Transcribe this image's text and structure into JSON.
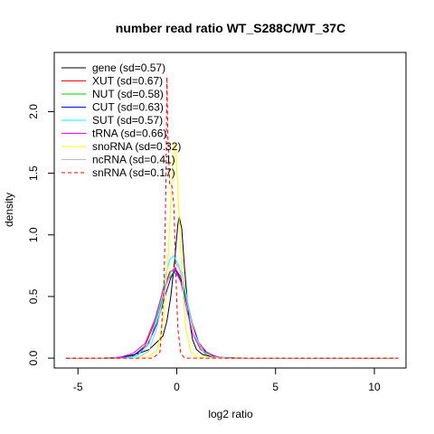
{
  "chart_data": {
    "type": "line",
    "title": "number read ratio WT_S288C/WT_37C",
    "xlabel": "log2 ratio",
    "ylabel": "density",
    "xlim": [
      -6.2,
      11.6
    ],
    "ylim": [
      -0.08,
      2.48
    ],
    "xticks": [
      -5,
      0,
      5,
      10
    ],
    "yticks": [
      0.0,
      0.5,
      1.0,
      1.5,
      2.0
    ],
    "xtick_labels": [
      "-5",
      "0",
      "5",
      "10"
    ],
    "ytick_labels": [
      "0.0",
      "0.5",
      "1.0",
      "1.5",
      "2.0"
    ],
    "legend_position": "top-left",
    "grid": false,
    "series": [
      {
        "name": "gene (sd=0.57)",
        "color": "#000000",
        "dash": false,
        "points": [
          [
            -5.6,
            0
          ],
          [
            -4.0,
            0
          ],
          [
            -3.0,
            0.005
          ],
          [
            -2.4,
            0.02
          ],
          [
            -1.9,
            0.04
          ],
          [
            -1.4,
            0.07
          ],
          [
            -1.0,
            0.13
          ],
          [
            -0.7,
            0.18
          ],
          [
            -0.5,
            0.3
          ],
          [
            -0.3,
            0.5
          ],
          [
            -0.1,
            0.8
          ],
          [
            0.05,
            1.08
          ],
          [
            0.12,
            1.15
          ],
          [
            0.25,
            1.05
          ],
          [
            0.4,
            0.72
          ],
          [
            0.6,
            0.35
          ],
          [
            0.8,
            0.15
          ],
          [
            1.0,
            0.07
          ],
          [
            1.3,
            0.03
          ],
          [
            1.8,
            0.01
          ],
          [
            2.5,
            0.003
          ],
          [
            4.0,
            0
          ],
          [
            11.2,
            0
          ]
        ]
      },
      {
        "name": "XUT (sd=0.67)",
        "color": "#ff0000",
        "dash": false,
        "points": [
          [
            -5.6,
            0
          ],
          [
            -3.0,
            0
          ],
          [
            -2.2,
            0.02
          ],
          [
            -1.6,
            0.1
          ],
          [
            -1.1,
            0.3
          ],
          [
            -0.7,
            0.55
          ],
          [
            -0.35,
            0.7
          ],
          [
            -0.1,
            0.73
          ],
          [
            0.2,
            0.66
          ],
          [
            0.5,
            0.48
          ],
          [
            0.8,
            0.28
          ],
          [
            1.1,
            0.13
          ],
          [
            1.5,
            0.05
          ],
          [
            2.0,
            0.01
          ],
          [
            3.0,
            0
          ],
          [
            11.2,
            0
          ]
        ]
      },
      {
        "name": "NUT (sd=0.58)",
        "color": "#00cc00",
        "dash": false,
        "points": [
          [
            -5.6,
            0
          ],
          [
            -2.8,
            0
          ],
          [
            -2.0,
            0.02
          ],
          [
            -1.4,
            0.12
          ],
          [
            -0.9,
            0.38
          ],
          [
            -0.5,
            0.62
          ],
          [
            -0.15,
            0.7
          ],
          [
            0.15,
            0.65
          ],
          [
            0.5,
            0.45
          ],
          [
            0.8,
            0.25
          ],
          [
            1.1,
            0.12
          ],
          [
            1.4,
            0.04
          ],
          [
            1.9,
            0.01
          ],
          [
            2.8,
            0
          ],
          [
            11.2,
            0
          ]
        ]
      },
      {
        "name": "CUT (sd=0.63)",
        "color": "#0000ff",
        "dash": false,
        "points": [
          [
            -5.6,
            0
          ],
          [
            -3.0,
            0
          ],
          [
            -2.2,
            0.02
          ],
          [
            -1.5,
            0.1
          ],
          [
            -1.0,
            0.28
          ],
          [
            -0.6,
            0.5
          ],
          [
            -0.3,
            0.65
          ],
          [
            -0.05,
            0.72
          ],
          [
            0.25,
            0.62
          ],
          [
            0.55,
            0.42
          ],
          [
            0.85,
            0.24
          ],
          [
            1.2,
            0.09
          ],
          [
            1.6,
            0.03
          ],
          [
            2.2,
            0.005
          ],
          [
            3.0,
            0
          ],
          [
            11.2,
            0
          ]
        ]
      },
      {
        "name": "SUT (sd=0.57)",
        "color": "#00ffff",
        "dash": false,
        "points": [
          [
            -5.6,
            0
          ],
          [
            -2.8,
            0
          ],
          [
            -2.0,
            0.02
          ],
          [
            -1.4,
            0.12
          ],
          [
            -0.9,
            0.4
          ],
          [
            -0.6,
            0.65
          ],
          [
            -0.35,
            0.8
          ],
          [
            -0.15,
            0.83
          ],
          [
            0.1,
            0.75
          ],
          [
            0.4,
            0.55
          ],
          [
            0.7,
            0.32
          ],
          [
            1.0,
            0.15
          ],
          [
            1.4,
            0.05
          ],
          [
            1.9,
            0.01
          ],
          [
            2.8,
            0
          ],
          [
            11.2,
            0
          ]
        ]
      },
      {
        "name": "tRNA (sd=0.66)",
        "color": "#ff00ff",
        "dash": false,
        "points": [
          [
            -5.6,
            0
          ],
          [
            -3.4,
            0
          ],
          [
            -2.8,
            0.01
          ],
          [
            -2.2,
            0.04
          ],
          [
            -1.6,
            0.12
          ],
          [
            -1.1,
            0.32
          ],
          [
            -0.7,
            0.55
          ],
          [
            -0.3,
            0.7
          ],
          [
            -0.1,
            0.72
          ],
          [
            0.2,
            0.62
          ],
          [
            0.5,
            0.4
          ],
          [
            0.8,
            0.2
          ],
          [
            1.2,
            0.07
          ],
          [
            1.7,
            0.02
          ],
          [
            2.4,
            0
          ],
          [
            11.2,
            0
          ]
        ]
      },
      {
        "name": "snoRNA (sd=0.32)",
        "color": "#ffff00",
        "dash": false,
        "points": [
          [
            -5.6,
            0
          ],
          [
            -1.6,
            0
          ],
          [
            -1.0,
            0.06
          ],
          [
            -0.7,
            0.3
          ],
          [
            -0.45,
            0.8
          ],
          [
            -0.3,
            1.25
          ],
          [
            -0.2,
            1.6
          ],
          [
            -0.1,
            1.75
          ],
          [
            0.0,
            1.55
          ],
          [
            0.1,
            1.2
          ],
          [
            0.25,
            0.7
          ],
          [
            0.45,
            0.25
          ],
          [
            0.7,
            0.05
          ],
          [
            1.0,
            0.01
          ],
          [
            1.5,
            0
          ],
          [
            11.2,
            0
          ]
        ]
      },
      {
        "name": "ncRNA (sd=0.41)",
        "color": "#bebebe",
        "dash": false,
        "points": [
          [
            -5.6,
            0
          ],
          [
            -2.0,
            0
          ],
          [
            -1.4,
            0.06
          ],
          [
            -1.0,
            0.25
          ],
          [
            -0.6,
            0.55
          ],
          [
            -0.3,
            0.7
          ],
          [
            0.0,
            0.76
          ],
          [
            0.3,
            0.68
          ],
          [
            0.6,
            0.42
          ],
          [
            0.9,
            0.2
          ],
          [
            1.3,
            0.06
          ],
          [
            1.8,
            0.01
          ],
          [
            2.5,
            0
          ],
          [
            11.2,
            0
          ]
        ]
      },
      {
        "name": "snRNA (sd=0.17)",
        "color": "#ff0000",
        "dash": true,
        "points": [
          [
            -5.6,
            0
          ],
          [
            -1.2,
            0
          ],
          [
            -0.85,
            0.05
          ],
          [
            -0.65,
            0.55
          ],
          [
            -0.55,
            1.4
          ],
          [
            -0.5,
            2.28
          ],
          [
            -0.45,
            1.8
          ],
          [
            -0.35,
            1.4
          ],
          [
            -0.25,
            1.4
          ],
          [
            -0.15,
            1.25
          ],
          [
            -0.05,
            0.7
          ],
          [
            0.05,
            0.25
          ],
          [
            0.2,
            0.04
          ],
          [
            0.4,
            0
          ],
          [
            11.2,
            0
          ]
        ]
      }
    ]
  }
}
